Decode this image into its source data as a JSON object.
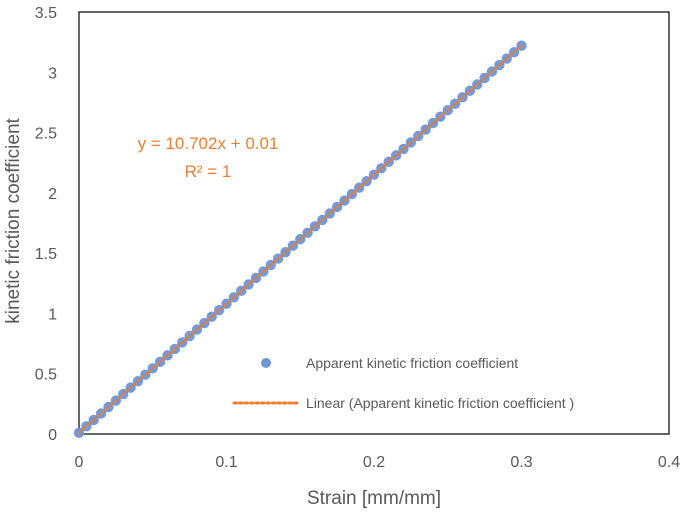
{
  "chart_data": {
    "type": "scatter",
    "xlabel": "Strain [mm/mm]",
    "ylabel": "kinetic friction coefficient",
    "xlim": [
      0,
      0.4
    ],
    "ylim": [
      0,
      3.5
    ],
    "x_ticks": [
      0,
      0.1,
      0.2,
      0.3,
      0.4
    ],
    "x_tick_labels": [
      "0",
      "0.1",
      "0.2",
      "0.3",
      "0.4"
    ],
    "y_ticks": [
      0,
      0.5,
      1,
      1.5,
      2,
      2.5,
      3,
      3.5
    ],
    "y_tick_labels": [
      "0",
      "0.5",
      "1",
      "1.5",
      "2",
      "2.5",
      "3",
      "3.5"
    ],
    "grid": false,
    "legend_position": "bottom-right",
    "series": [
      {
        "name": "Apparent kinetic friction coefficient",
        "kind": "scatter",
        "color": "#6f95d6",
        "x": [
          0,
          0.005,
          0.01,
          0.015,
          0.02,
          0.025,
          0.03,
          0.035,
          0.04,
          0.045,
          0.05,
          0.055,
          0.06,
          0.065,
          0.07,
          0.075,
          0.08,
          0.085,
          0.09,
          0.095,
          0.1,
          0.105,
          0.11,
          0.115,
          0.12,
          0.125,
          0.13,
          0.135,
          0.14,
          0.145,
          0.15,
          0.155,
          0.16,
          0.165,
          0.17,
          0.175,
          0.18,
          0.185,
          0.19,
          0.195,
          0.2,
          0.205,
          0.21,
          0.215,
          0.22,
          0.225,
          0.23,
          0.235,
          0.24,
          0.245,
          0.25,
          0.255,
          0.26,
          0.265,
          0.27,
          0.275,
          0.28,
          0.285,
          0.29,
          0.295,
          0.3
        ],
        "y": [
          0.01,
          0.0635,
          0.117,
          0.1705,
          0.224,
          0.2776,
          0.3311,
          0.3846,
          0.4381,
          0.4916,
          0.5451,
          0.5986,
          0.6521,
          0.7056,
          0.7591,
          0.8127,
          0.8662,
          0.9197,
          0.9732,
          1.0267,
          1.0802,
          1.1337,
          1.1872,
          1.2407,
          1.2942,
          1.3478,
          1.4013,
          1.4548,
          1.5083,
          1.5618,
          1.6153,
          1.6688,
          1.7223,
          1.7758,
          1.8293,
          1.8829,
          1.9364,
          1.9899,
          2.0434,
          2.0969,
          2.1504,
          2.2039,
          2.2574,
          2.3109,
          2.3644,
          2.418,
          2.4715,
          2.525,
          2.5785,
          2.632,
          2.6855,
          2.739,
          2.7925,
          2.846,
          2.8995,
          2.9531,
          3.0066,
          3.0601,
          3.1136,
          3.1671,
          3.2206
        ]
      },
      {
        "name": "Linear (Apparent kinetic friction coefficient )",
        "kind": "trendline",
        "color": "#ed7d31",
        "x": [
          0,
          0.3
        ],
        "y": [
          0.01,
          3.2206
        ]
      }
    ],
    "annotations": [
      {
        "text": "y = 10.702x + 0.01",
        "color": "#ed7d31"
      },
      {
        "text": "R² = 1",
        "color": "#ed7d31"
      }
    ]
  }
}
